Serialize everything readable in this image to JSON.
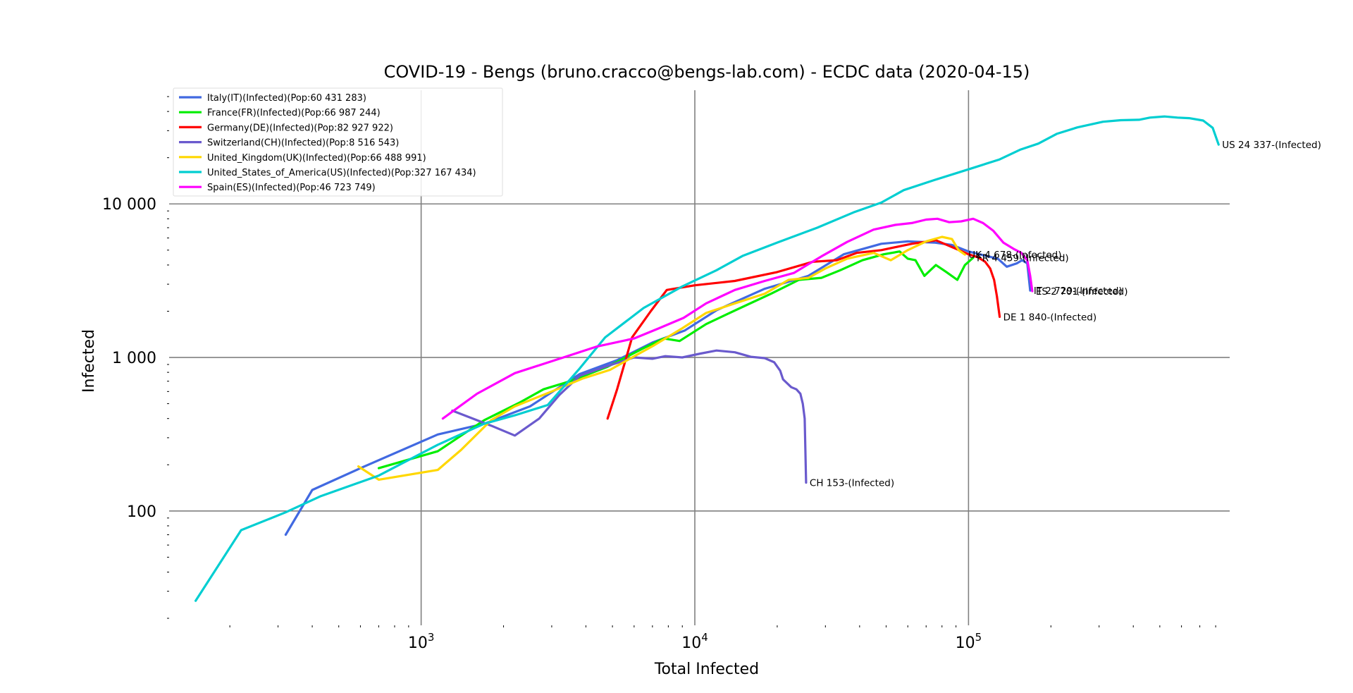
{
  "chart_data": {
    "type": "line",
    "title": "COVID-19 - Bengs (bruno.cracco@bengs-lab.com) - ECDC data  (2020-04-15)",
    "xlabel": "Total Infected",
    "ylabel": "Infected",
    "x_scale": "log",
    "y_scale": "log",
    "xlim": [
      120,
      900000
    ],
    "ylim": [
      18,
      55000
    ],
    "grid": "major",
    "legend_position": "top-left",
    "x_ticks": [
      {
        "value": 1000,
        "base": "10",
        "exp": "3"
      },
      {
        "value": 10000,
        "base": "10",
        "exp": "4"
      },
      {
        "value": 100000,
        "base": "10",
        "exp": "5"
      }
    ],
    "y_ticks": [
      {
        "value": 100,
        "label": "100"
      },
      {
        "value": 1000,
        "label": "1 000"
      },
      {
        "value": 10000,
        "label": "10 000"
      }
    ],
    "series": [
      {
        "name": "Italy(IT)(Infected)(Pop:60 431 283)",
        "color": "#4169e1",
        "end_label": "IT 2 729-(Infected)",
        "points": [
          [
            320,
            70
          ],
          [
            400,
            137
          ],
          [
            600,
            190
          ],
          [
            1150,
            315
          ],
          [
            1700,
            370
          ],
          [
            2500,
            480
          ],
          [
            3800,
            780
          ],
          [
            5200,
            960
          ],
          [
            7000,
            1250
          ],
          [
            9200,
            1500
          ],
          [
            12000,
            2030
          ],
          [
            18000,
            2800
          ],
          [
            26000,
            3400
          ],
          [
            35000,
            4700
          ],
          [
            48000,
            5500
          ],
          [
            60000,
            5700
          ],
          [
            75000,
            5600
          ],
          [
            87000,
            5400
          ],
          [
            100000,
            4900
          ],
          [
            115000,
            4600
          ],
          [
            128000,
            4400
          ],
          [
            138000,
            3900
          ],
          [
            150000,
            4100
          ],
          [
            157000,
            4300
          ],
          [
            164000,
            4100
          ],
          [
            168000,
            2729
          ]
        ]
      },
      {
        "name": "France(FR)(Infected)(Pop:66 987 244)",
        "color": "#00ee00",
        "end_label": "FR 4 459-(Infected)",
        "points": [
          [
            700,
            190
          ],
          [
            1150,
            245
          ],
          [
            1700,
            390
          ],
          [
            2300,
            510
          ],
          [
            2800,
            620
          ],
          [
            3500,
            700
          ],
          [
            4800,
            870
          ],
          [
            6500,
            1150
          ],
          [
            7700,
            1330
          ],
          [
            8800,
            1280
          ],
          [
            11000,
            1650
          ],
          [
            13000,
            1900
          ],
          [
            15500,
            2200
          ],
          [
            19000,
            2600
          ],
          [
            24000,
            3200
          ],
          [
            29000,
            3300
          ],
          [
            34000,
            3700
          ],
          [
            41000,
            4300
          ],
          [
            49000,
            4700
          ],
          [
            56000,
            4900
          ],
          [
            60000,
            4400
          ],
          [
            64000,
            4300
          ],
          [
            69000,
            3400
          ],
          [
            76000,
            4000
          ],
          [
            83000,
            3600
          ],
          [
            91000,
            3200
          ],
          [
            97000,
            4000
          ],
          [
            104000,
            4459
          ]
        ]
      },
      {
        "name": "Germany(DE)(Infected)(Pop:82 927 922)",
        "color": "#ff0000",
        "end_label": "DE 1 840-(Infected)",
        "points": [
          [
            4800,
            400
          ],
          [
            5200,
            620
          ],
          [
            5900,
            1350
          ],
          [
            6900,
            2000
          ],
          [
            7900,
            2750
          ],
          [
            10000,
            2950
          ],
          [
            14000,
            3150
          ],
          [
            20000,
            3600
          ],
          [
            27000,
            4200
          ],
          [
            33000,
            4300
          ],
          [
            39000,
            4800
          ],
          [
            48000,
            5000
          ],
          [
            62000,
            5500
          ],
          [
            76000,
            5800
          ],
          [
            90000,
            5100
          ],
          [
            100000,
            4700
          ],
          [
            108000,
            4500
          ],
          [
            115000,
            4200
          ],
          [
            120000,
            3800
          ],
          [
            124000,
            3200
          ],
          [
            127000,
            2500
          ],
          [
            130000,
            1840
          ]
        ]
      },
      {
        "name": "Switzerland(CH)(Infected)(Pop:8 516 543)",
        "color": "#6a5acd",
        "end_label": "CH 153-(Infected)",
        "points": [
          [
            1300,
            450
          ],
          [
            1800,
            360
          ],
          [
            2200,
            310
          ],
          [
            2700,
            400
          ],
          [
            3200,
            570
          ],
          [
            3800,
            760
          ],
          [
            4800,
            880
          ],
          [
            6000,
            1000
          ],
          [
            7000,
            980
          ],
          [
            7800,
            1020
          ],
          [
            9000,
            1000
          ],
          [
            10500,
            1060
          ],
          [
            12000,
            1110
          ],
          [
            14000,
            1080
          ],
          [
            16000,
            1010
          ],
          [
            18000,
            990
          ],
          [
            19500,
            930
          ],
          [
            20500,
            820
          ],
          [
            21000,
            720
          ],
          [
            22500,
            640
          ],
          [
            23500,
            620
          ],
          [
            24300,
            580
          ],
          [
            24800,
            500
          ],
          [
            25200,
            400
          ],
          [
            25500,
            153
          ]
        ]
      },
      {
        "name": "United_Kingdom(UK)(Infected)(Pop:66 488 991)",
        "color": "#ffd700",
        "end_label": "UK 4 678-(Infected)",
        "points": [
          [
            590,
            195
          ],
          [
            700,
            160
          ],
          [
            1150,
            185
          ],
          [
            1400,
            250
          ],
          [
            1800,
            390
          ],
          [
            2200,
            480
          ],
          [
            3000,
            600
          ],
          [
            3900,
            730
          ],
          [
            4900,
            830
          ],
          [
            5900,
            1000
          ],
          [
            7100,
            1200
          ],
          [
            9000,
            1550
          ],
          [
            11000,
            1950
          ],
          [
            14000,
            2250
          ],
          [
            18000,
            2600
          ],
          [
            22000,
            3200
          ],
          [
            26000,
            3300
          ],
          [
            30000,
            3800
          ],
          [
            36000,
            4400
          ],
          [
            45000,
            4800
          ],
          [
            52000,
            4300
          ],
          [
            60000,
            5000
          ],
          [
            70000,
            5700
          ],
          [
            80000,
            6100
          ],
          [
            87000,
            5900
          ],
          [
            92000,
            5000
          ],
          [
            97000,
            4678
          ]
        ]
      },
      {
        "name": "United_States_of_America(US)(Infected)(Pop:327 167 434)",
        "color": "#00ced1",
        "end_label": "US 24 337-(Infected)",
        "points": [
          [
            150,
            26
          ],
          [
            220,
            75
          ],
          [
            320,
            98
          ],
          [
            430,
            125
          ],
          [
            700,
            170
          ],
          [
            1150,
            270
          ],
          [
            1700,
            370
          ],
          [
            2200,
            420
          ],
          [
            2900,
            490
          ],
          [
            3800,
            850
          ],
          [
            4700,
            1350
          ],
          [
            6500,
            2100
          ],
          [
            9000,
            2900
          ],
          [
            12000,
            3700
          ],
          [
            15000,
            4600
          ],
          [
            20000,
            5600
          ],
          [
            28000,
            7000
          ],
          [
            38000,
            8800
          ],
          [
            48000,
            10200
          ],
          [
            58000,
            12300
          ],
          [
            75000,
            14300
          ],
          [
            100000,
            16800
          ],
          [
            130000,
            19500
          ],
          [
            155000,
            22600
          ],
          [
            180000,
            24700
          ],
          [
            210000,
            28600
          ],
          [
            250000,
            31500
          ],
          [
            310000,
            34300
          ],
          [
            360000,
            35100
          ],
          [
            420000,
            35300
          ],
          [
            460000,
            36500
          ],
          [
            520000,
            37100
          ],
          [
            580000,
            36500
          ],
          [
            640000,
            36200
          ],
          [
            720000,
            34900
          ],
          [
            780000,
            31300
          ],
          [
            820000,
            24337
          ]
        ]
      },
      {
        "name": "Spain(ES)(Infected)(Pop:46 723 749)",
        "color": "#ff00ff",
        "end_label": "ES 2 701-(Infected)",
        "points": [
          [
            1200,
            400
          ],
          [
            1600,
            580
          ],
          [
            2200,
            790
          ],
          [
            3200,
            980
          ],
          [
            4400,
            1180
          ],
          [
            6000,
            1330
          ],
          [
            7400,
            1550
          ],
          [
            9100,
            1810
          ],
          [
            11000,
            2250
          ],
          [
            14000,
            2750
          ],
          [
            18000,
            3150
          ],
          [
            23000,
            3550
          ],
          [
            29000,
            4550
          ],
          [
            36000,
            5650
          ],
          [
            45000,
            6800
          ],
          [
            54000,
            7300
          ],
          [
            62000,
            7500
          ],
          [
            70000,
            7900
          ],
          [
            77000,
            8000
          ],
          [
            85000,
            7600
          ],
          [
            94000,
            7700
          ],
          [
            104000,
            8000
          ],
          [
            113000,
            7500
          ],
          [
            123000,
            6700
          ],
          [
            134000,
            5600
          ],
          [
            146000,
            5100
          ],
          [
            156000,
            4800
          ],
          [
            164000,
            4300
          ],
          [
            168000,
            3400
          ],
          [
            171000,
            2701
          ]
        ]
      }
    ]
  }
}
